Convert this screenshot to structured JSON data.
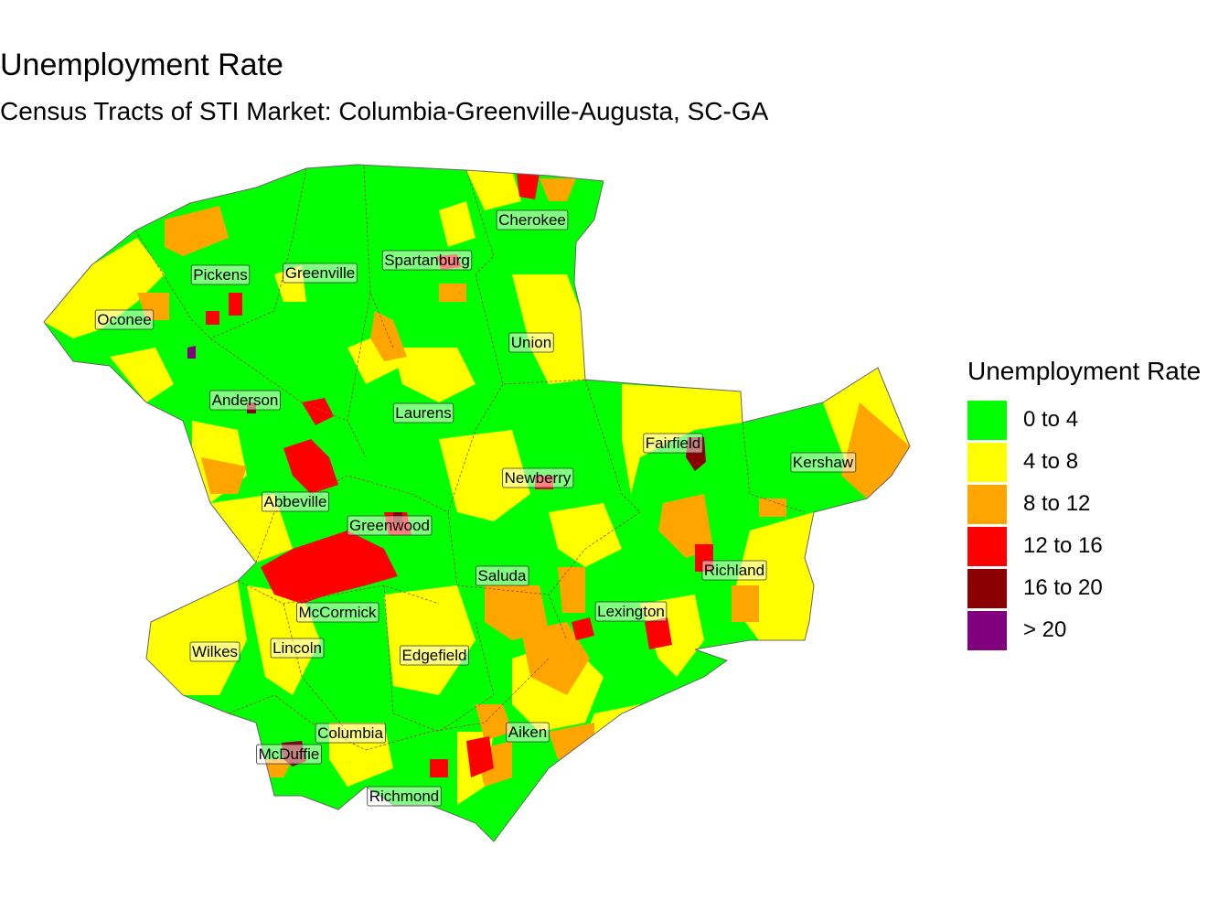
{
  "title": "Unemployment Rate",
  "subtitle": "Census Tracts of STI Market: Columbia-Greenville-Augusta, SC-GA",
  "legend": {
    "title": "Unemployment Rate",
    "items": [
      {
        "label": "0 to 4",
        "color": "#00ff00"
      },
      {
        "label": "4 to 8",
        "color": "#ffff00"
      },
      {
        "label": "8 to 12",
        "color": "#ffa500"
      },
      {
        "label": "12 to 16",
        "color": "#ff0000"
      },
      {
        "label": "16 to 20",
        "color": "#8b0000"
      },
      {
        "label": "> 20",
        "color": "#800080"
      }
    ]
  },
  "counties": [
    "Cherokee",
    "Spartanburg",
    "Greenville",
    "Pickens",
    "Oconee",
    "Union",
    "Anderson",
    "Laurens",
    "Fairfield",
    "Kershaw",
    "Newberry",
    "Abbeville",
    "Greenwood",
    "Saluda",
    "Richland",
    "McCormick",
    "Lexington",
    "Wilkes",
    "Lincoln",
    "Edgefield",
    "Columbia",
    "Aiken",
    "McDuffie",
    "Richmond"
  ]
}
